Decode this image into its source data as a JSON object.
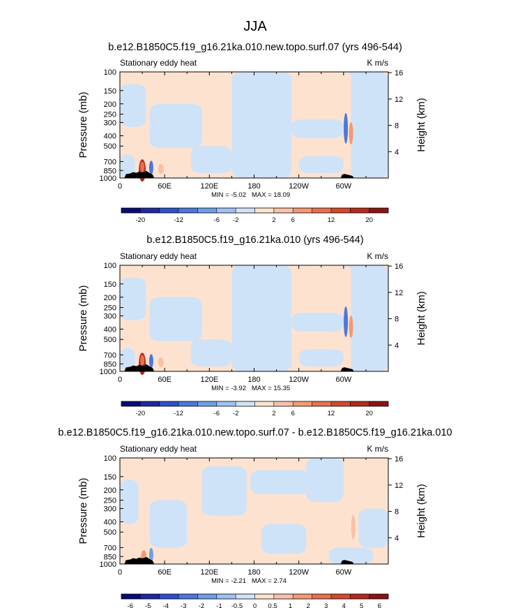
{
  "figure": {
    "title": "JJA"
  },
  "levels": {
    "abs": {
      "ticks": [
        -20,
        -12,
        -6,
        -2,
        2,
        6,
        12,
        20
      ]
    },
    "diff": {
      "ticks": [
        -6,
        -5,
        -4,
        -3,
        -2,
        -1,
        -0.5,
        0,
        0.5,
        1,
        2,
        3,
        4,
        5,
        6
      ]
    }
  },
  "palette": [
    "#0a0a78",
    "#1c2a9e",
    "#2f50c8",
    "#4a78dc",
    "#6f9ee8",
    "#9cc2f2",
    "#cfe3f8",
    "#fde2d0",
    "#f8c1a6",
    "#f29a76",
    "#e8704c",
    "#d4482c",
    "#b52a1c",
    "#8a1414"
  ],
  "colors": {
    "topography": "#000000",
    "axis": "#000000"
  },
  "chart_data": [
    {
      "type": "heatmap",
      "title": "b.e12.B1850C5.f19_g16.21ka.010.new.topo.surf.07 (yrs 496-544)",
      "left_string": "Stationary eddy heat",
      "right_string": "K m/s",
      "ylabel": "Pressure (mb)",
      "ylabel_right": "Height (km)",
      "xticks": [
        "0",
        "60E",
        "120E",
        "180",
        "120W",
        "60W"
      ],
      "xlim": [
        0,
        360
      ],
      "yticks": [
        "100",
        "150",
        "200",
        "250",
        "300",
        "400",
        "500",
        "700",
        "850",
        "1000"
      ],
      "yticks_right": [
        "16",
        "12",
        "8",
        "4"
      ],
      "ylim": [
        1000,
        100
      ],
      "y_scale": "log",
      "min_label": "MIN = -5.02",
      "max_label": "MAX = 18.09",
      "colorbar": "abs"
    },
    {
      "type": "heatmap",
      "title": "b.e12.B1850C5.f19_g16.21ka.010 (yrs 496-544)",
      "left_string": "Stationary eddy heat",
      "right_string": "K m/s",
      "ylabel": "Pressure (mb)",
      "ylabel_right": "Height (km)",
      "xticks": [
        "0",
        "60E",
        "120E",
        "180",
        "120W",
        "60W"
      ],
      "xlim": [
        0,
        360
      ],
      "yticks": [
        "100",
        "150",
        "200",
        "250",
        "300",
        "400",
        "500",
        "700",
        "850",
        "1000"
      ],
      "yticks_right": [
        "16",
        "12",
        "8",
        "4"
      ],
      "ylim": [
        1000,
        100
      ],
      "y_scale": "log",
      "min_label": "MIN = -3.92",
      "max_label": "MAX = 15.35",
      "colorbar": "abs"
    },
    {
      "type": "heatmap",
      "title": "b.e12.B1850C5.f19_g16.21ka.010.new.topo.surf.07 - b.e12.B1850C5.f19_g16.21ka.010",
      "left_string": "Stationary eddy heat",
      "right_string": "K m/s",
      "ylabel": "Pressure (mb)",
      "ylabel_right": "Height (km)",
      "xticks": [
        "0",
        "60E",
        "120E",
        "180",
        "120W",
        "60W"
      ],
      "xlim": [
        0,
        360
      ],
      "yticks": [
        "100",
        "150",
        "200",
        "250",
        "300",
        "400",
        "500",
        "700",
        "850",
        "1000"
      ],
      "yticks_right": [
        "16",
        "12",
        "8",
        "4"
      ],
      "ylim": [
        1000,
        100
      ],
      "y_scale": "log",
      "min_label": "MIN = -2.21",
      "max_label": "MAX = 2.74",
      "colorbar": "diff"
    }
  ]
}
